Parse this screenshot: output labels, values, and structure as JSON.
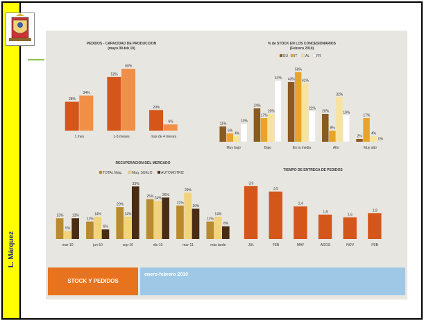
{
  "sidebar": {
    "author": "L. Márquez"
  },
  "footer": {
    "left_label": "STOCK Y PEDIDOS",
    "right_label": "enero-febrero 2010"
  },
  "colors": {
    "orange_dark": "#d4561a",
    "orange_light": "#f09048",
    "gold": "#b98a2e",
    "pale_yellow": "#f2d27a",
    "brown_dark": "#4a2c14",
    "white": "#ffffff",
    "sidebar_yellow": "#ffff00",
    "banner_orange": "#e8731e",
    "banner_blue": "#9ec8e6"
  },
  "chart_data": [
    {
      "type": "bar",
      "title": "PEDIDOS - CAPACIDAD DE PRODUCCION",
      "subtitle": "(mayo 09-feb 10)",
      "categories": [
        "1 mes",
        "1-3 meses",
        "mas de 4 meses"
      ],
      "series": [
        {
          "values": [
            28,
            52,
            20
          ],
          "labels": [
            "28%",
            "52%",
            "20%"
          ],
          "color": "#d4561a"
        },
        {
          "values": [
            34,
            60,
            6
          ],
          "labels": [
            "34%",
            "60%",
            "6%"
          ],
          "color": "#f09048"
        }
      ],
      "ylim": [
        0,
        62
      ]
    },
    {
      "type": "bar",
      "title": "% de STOCK EN LOS CONCESIONARIOS",
      "subtitle": "(Febrero 2010)",
      "categories": [
        "Muy bajo",
        "Bajo",
        "En la media",
        "Alto",
        "Muy alto"
      ],
      "series": [
        {
          "name": "EU",
          "values": [
            11,
            24,
            43,
            20,
            2
          ],
          "labels": [
            "11%",
            "24%",
            "43%",
            "20%",
            "2%"
          ],
          "color": "#8b5a1e"
        },
        {
          "name": "IT",
          "values": [
            6,
            17,
            50,
            8,
            17
          ],
          "labels": [
            "6%",
            "17%",
            "50%",
            "8%",
            "17%"
          ],
          "color": "#e8a42a"
        },
        {
          "name": "AL",
          "values": [
            4,
            20,
            42,
            32,
            4
          ],
          "labels": [
            "4%",
            "20%",
            "42%",
            "32%",
            "4%"
          ],
          "color": "#f7e3a0"
        },
        {
          "name": "FR",
          "values": [
            13,
            44,
            22,
            19,
            0
          ],
          "labels": [
            "13%",
            "44%",
            "22%",
            "19%",
            "0%"
          ],
          "color": "#ffffff"
        }
      ],
      "ylim": [
        0,
        52
      ]
    },
    {
      "type": "bar",
      "title": "RECUPERACION DEL MERCADO",
      "categories": [
        "mar-10",
        "jun-10",
        "sep-10",
        "dic-10",
        "mar-11",
        "más tarde"
      ],
      "series": [
        {
          "name": "TOTAL Maq.",
          "values": [
            13,
            11,
            20,
            25,
            21,
            11
          ],
          "labels": [
            "13%",
            "11%",
            "20%",
            "25%",
            "21%",
            "11%"
          ],
          "color": "#b98a2e"
        },
        {
          "name": "Maq. SUELO",
          "values": [
            5,
            14,
            14,
            24,
            29,
            14
          ],
          "labels": [
            "5%",
            "14%",
            "14%",
            "24%",
            "29%",
            "14%"
          ],
          "color": "#f2d27a"
        },
        {
          "name": "AUTOMOTRIZ",
          "values": [
            13,
            6,
            33,
            26,
            19,
            8
          ],
          "labels": [
            "13%",
            "6%",
            "33%",
            "26%",
            "19%",
            "8%"
          ],
          "color": "#4a2c14"
        }
      ],
      "ylim": [
        0,
        34
      ]
    },
    {
      "type": "bar",
      "title": "TIEMPO DE ENTREGA DE PEDIDOS",
      "categories": [
        "JUL",
        "FEB",
        "MAY",
        "AGOS",
        "NOV",
        "FEB"
      ],
      "series": [
        {
          "values": [
            3.9,
            3.5,
            2.4,
            1.8,
            1.6,
            1.9
          ],
          "labels": [
            "3,9",
            "3,5",
            "2,4",
            "1,8",
            "1,6",
            "1,9"
          ],
          "color": "#d4561a"
        }
      ],
      "ylim": [
        0,
        4.2
      ]
    }
  ]
}
